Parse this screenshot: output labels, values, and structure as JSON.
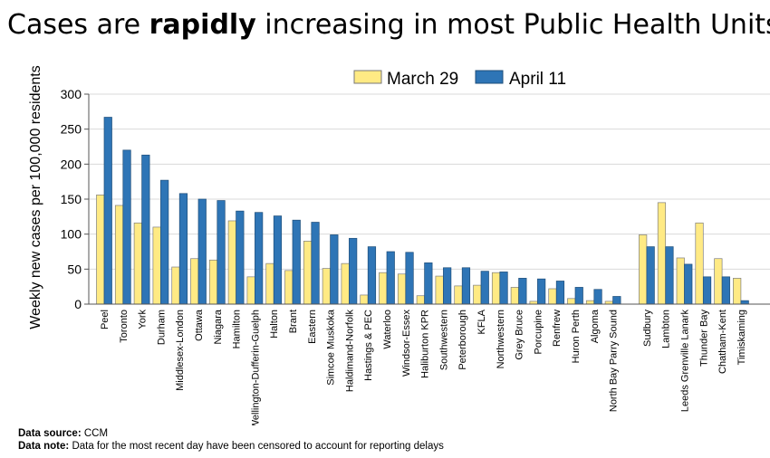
{
  "title": {
    "pre": "Cases are ",
    "bold": "rapidly",
    "post": " increasing in most Public Health Units"
  },
  "footer": {
    "source_label": "Data source:",
    "source_value": "CCM",
    "note_label": "Data note:",
    "note_value": "Data for the most recent day have been censored to account for reporting delays"
  },
  "colors": {
    "march": "#FFEA84",
    "april": "#2E75B6"
  },
  "chart_data": {
    "type": "bar",
    "title": "Cases are rapidly increasing in most Public Health Units",
    "xlabel": "",
    "ylabel": "Weekly new cases per 100,000 residents",
    "ylim": [
      0,
      300
    ],
    "yticks": [
      0,
      50,
      100,
      150,
      200,
      250,
      300
    ],
    "legend": "top-center",
    "grid": true,
    "categories": [
      "Peel",
      "Toronto",
      "York",
      "Durham",
      "Middlesex-London",
      "Ottawa",
      "Niagara",
      "Hamilton",
      "Wellington-Dufferin-Guelph",
      "Halton",
      "Brant",
      "Eastern",
      "Simcoe Muskoka",
      "Haldimand-Norfolk",
      "Hastings & PEC",
      "Waterloo",
      "Windsor-Essex",
      "Haliburton KPR",
      "Southwestern",
      "Peterborough",
      "KFLA",
      "Northwestern",
      "Grey Bruce",
      "Porcupine",
      "Renfrew",
      "Huron Perth",
      "Algoma",
      "North Bay Parry Sound",
      "Sudbury",
      "Lambton",
      "Leeds Grenville Lanark",
      "Thunder Bay",
      "Chatham-Kent",
      "Timiskaming"
    ],
    "groups_gap_after": 28,
    "series": [
      {
        "name": "March 29",
        "values": [
          156,
          141,
          116,
          110,
          53,
          65,
          63,
          119,
          39,
          58,
          48,
          90,
          51,
          58,
          13,
          45,
          43,
          12,
          40,
          26,
          27,
          45,
          24,
          4,
          22,
          8,
          5,
          4,
          99,
          145,
          66,
          116,
          65,
          37
        ]
      },
      {
        "name": "April 11",
        "values": [
          267,
          220,
          213,
          177,
          158,
          150,
          148,
          133,
          131,
          126,
          120,
          117,
          99,
          94,
          82,
          75,
          74,
          59,
          52,
          52,
          47,
          46,
          37,
          36,
          33,
          24,
          21,
          11,
          82,
          82,
          57,
          39,
          39,
          5
        ]
      }
    ]
  }
}
